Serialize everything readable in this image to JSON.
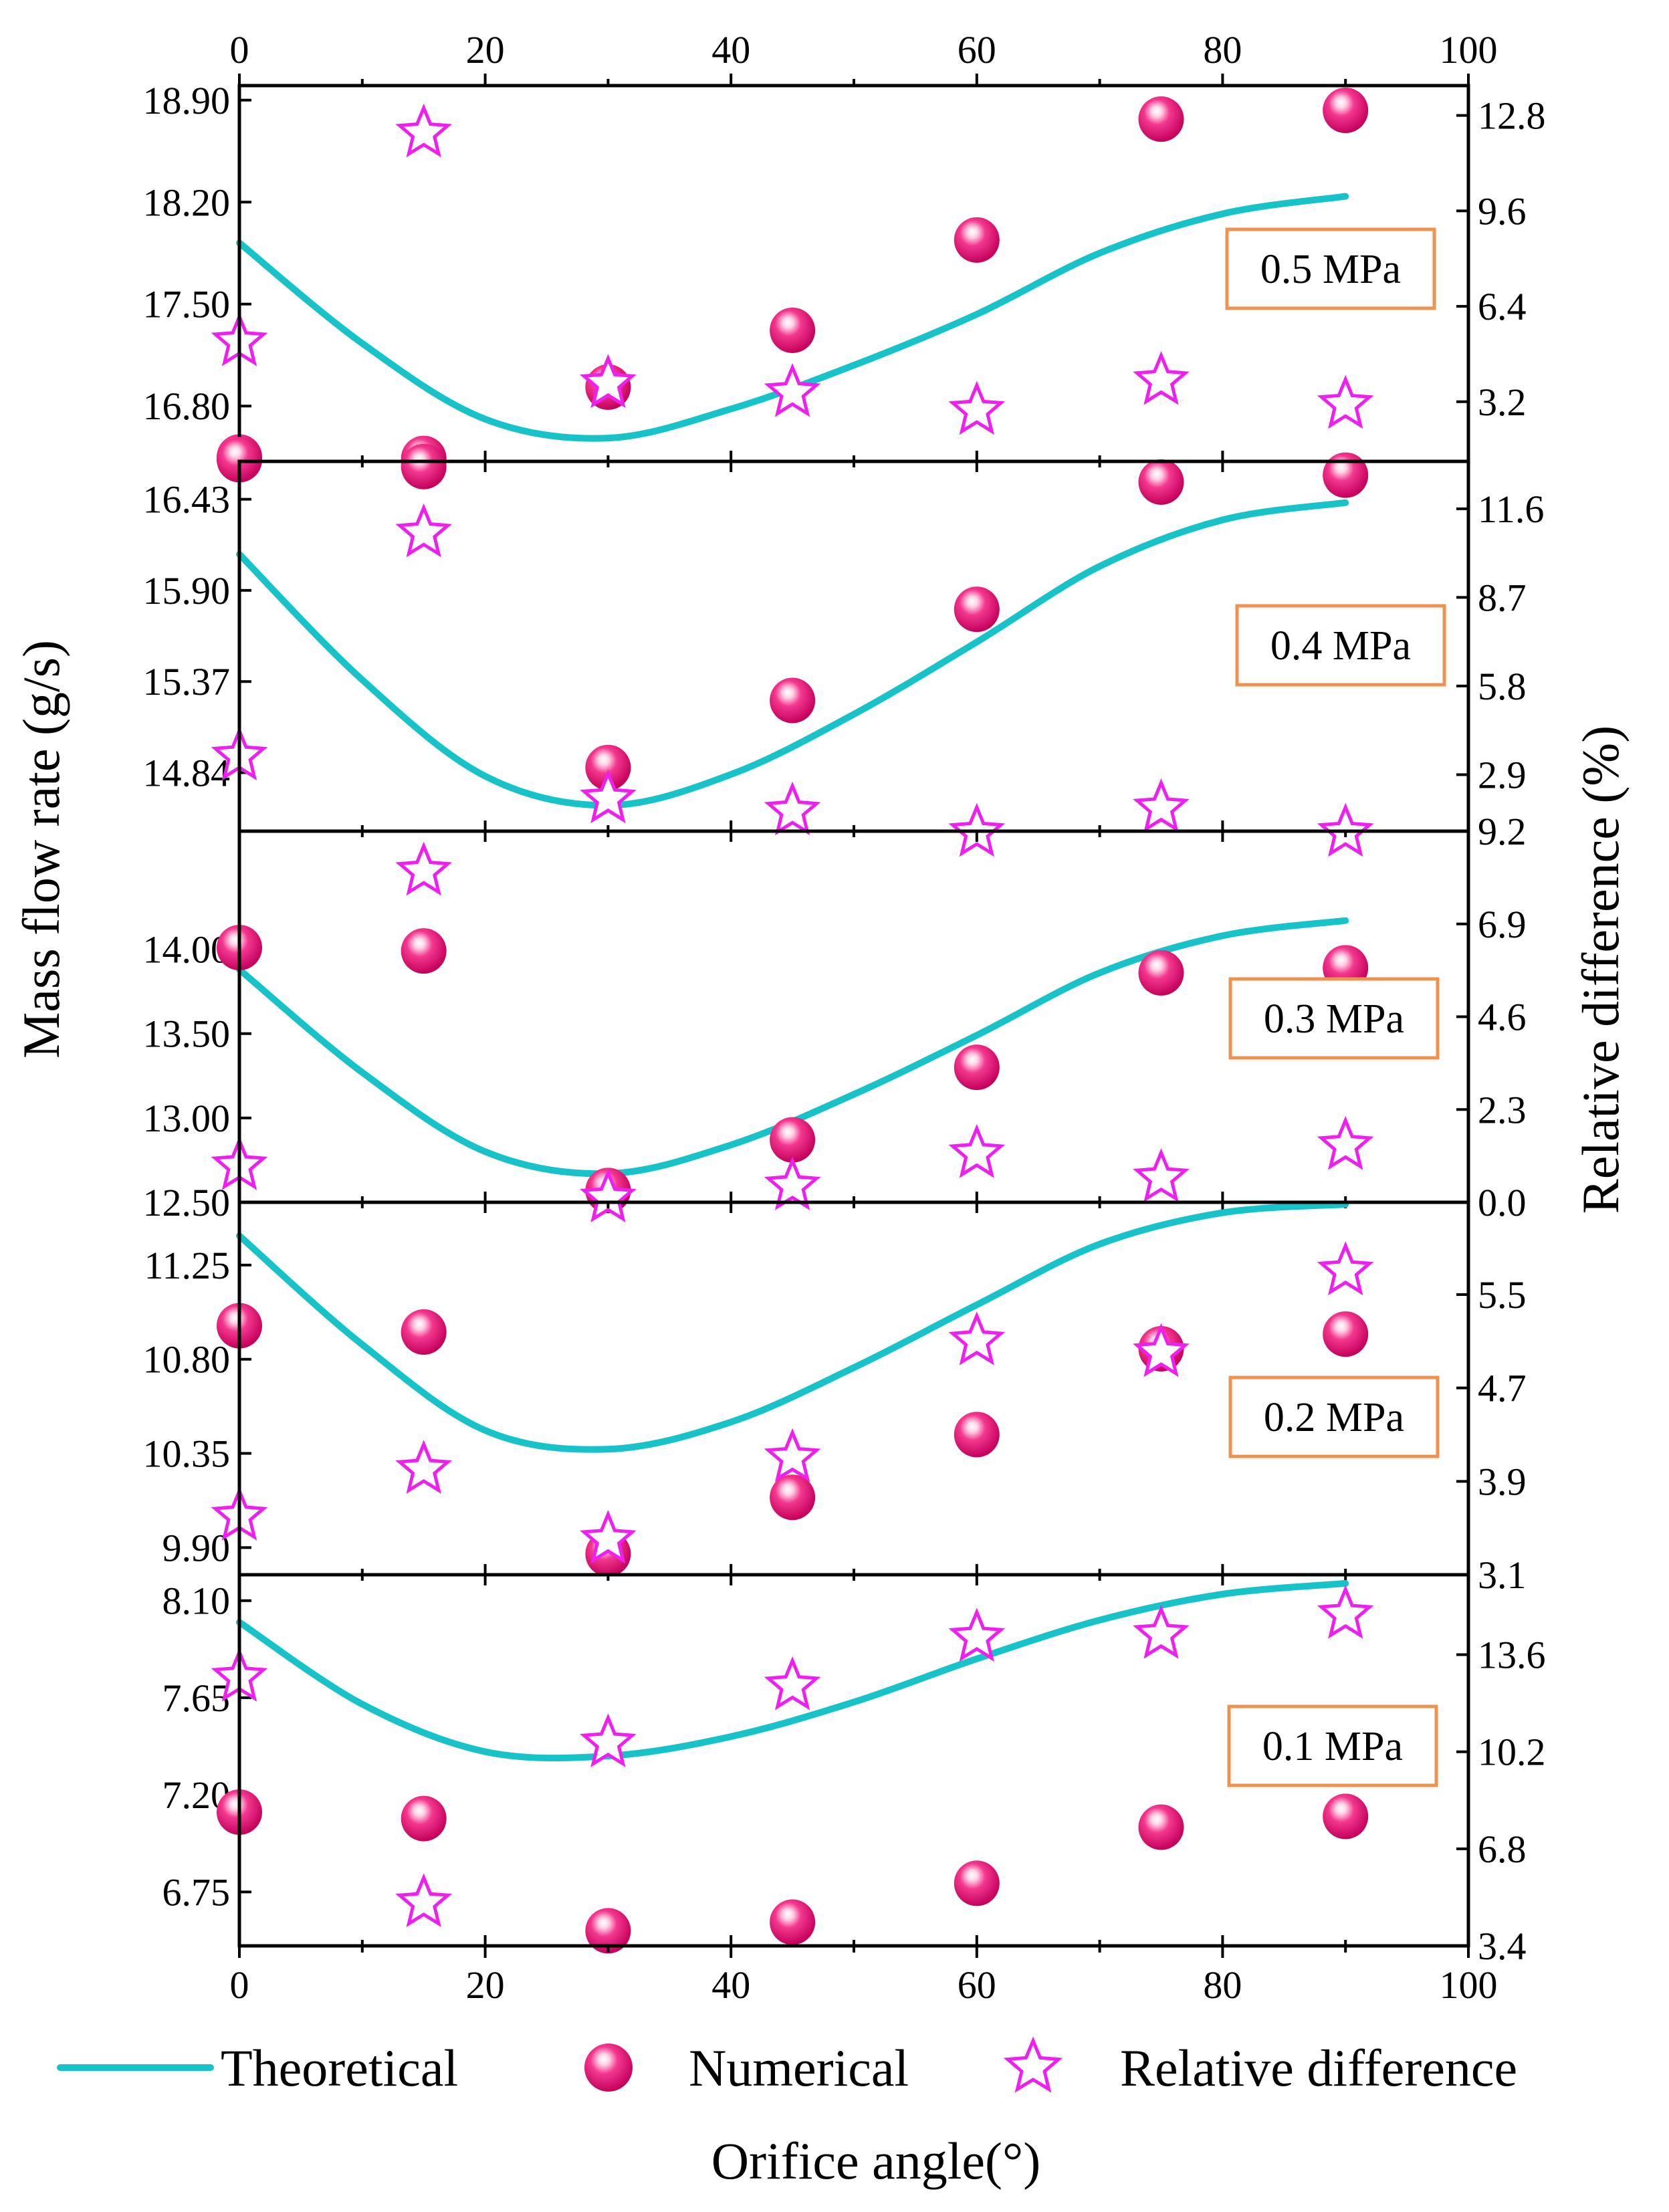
{
  "chart_data": {
    "type": "scatter",
    "xlabel": "Orifice angle(°)",
    "ylabel": "Mass flow rate (g/s)",
    "y2label": "Relative difference (%)",
    "xlim": [
      0,
      100
    ],
    "xticks": [
      0,
      20,
      40,
      60,
      80,
      100
    ],
    "xtick_labels": [
      "0",
      "20",
      "40",
      "60",
      "80",
      "100"
    ],
    "legend": {
      "position": "bottom",
      "entries": [
        {
          "key": "theoretical",
          "label": "Theoretical"
        },
        {
          "key": "numerical",
          "label": "Numerical"
        },
        {
          "key": "relative",
          "label": "Relative difference"
        }
      ]
    },
    "colors": {
      "theoretical": "#17c3c9",
      "numerical": "#e8106e",
      "relative": "#ef1fef",
      "box": "#f0924f"
    },
    "panels": [
      {
        "label": "0.5 MPa",
        "ylim": [
          16.42,
          19.0
        ],
        "yticks": [
          16.8,
          17.5,
          18.2,
          18.9
        ],
        "ytick_labels": [
          "16.80",
          "17.50",
          "18.20",
          "18.90"
        ],
        "y2lim": [
          1.2,
          13.8
        ],
        "y2ticks": [
          3.2,
          6.4,
          9.6,
          12.8
        ],
        "y2tick_labels": [
          "3.2",
          "6.4",
          "9.6",
          "12.8"
        ],
        "numerical": {
          "x": [
            0,
            15,
            30,
            45,
            60,
            75,
            90
          ],
          "y": [
            16.45,
            16.44,
            16.93,
            17.32,
            17.94,
            18.77,
            18.83
          ]
        },
        "relative": {
          "x": [
            0,
            15,
            30,
            45,
            60,
            75,
            90
          ],
          "y": [
            5.2,
            12.2,
            3.8,
            3.5,
            2.9,
            3.9,
            3.1
          ]
        },
        "theoretical": {
          "x": [
            0,
            10,
            20,
            30,
            40,
            50,
            60,
            70,
            80,
            90
          ],
          "y": [
            17.92,
            17.23,
            16.71,
            16.58,
            16.78,
            17.08,
            17.43,
            17.85,
            18.12,
            18.24
          ]
        }
      },
      {
        "label": "0.4 MPa",
        "ylim": [
          14.5,
          16.65
        ],
        "yticks": [
          14.84,
          15.37,
          15.9,
          16.43
        ],
        "ytick_labels": [
          "14.84",
          "15.37",
          "15.90",
          "16.43"
        ],
        "y2lim": [
          1.05,
          13.15
        ],
        "y2ticks": [
          2.9,
          5.8,
          8.7,
          11.6
        ],
        "y2tick_labels": [
          "2.9",
          "5.8",
          "8.7",
          "11.6"
        ],
        "numerical": {
          "x": [
            0,
            15,
            30,
            45,
            60,
            75,
            90
          ],
          "y": [
            16.66,
            16.62,
            14.87,
            15.26,
            15.79,
            16.53,
            16.57
          ]
        },
        "relative": {
          "x": [
            0,
            15,
            30,
            45,
            60,
            75,
            90
          ],
          "y": [
            3.5,
            10.8,
            2.1,
            1.7,
            1.0,
            1.8,
            1.0
          ]
        },
        "theoretical": {
          "x": [
            0,
            10,
            20,
            30,
            40,
            50,
            60,
            70,
            80,
            90
          ],
          "y": [
            16.11,
            15.38,
            14.82,
            14.65,
            14.83,
            15.18,
            15.6,
            16.04,
            16.31,
            16.41
          ]
        }
      },
      {
        "label": "0.3 MPa",
        "ylim": [
          12.5,
          14.7
        ],
        "yticks": [
          12.5,
          13.0,
          13.5,
          14.0
        ],
        "ytick_labels": [
          "12.50",
          "13.00",
          "13.50",
          "14.00"
        ],
        "y2lim": [
          0.0,
          9.2
        ],
        "y2ticks": [
          0.0,
          2.3,
          4.6,
          6.9,
          9.2
        ],
        "y2tick_labels": [
          "0.0",
          "2.3",
          "4.6",
          "6.9",
          "9.2"
        ],
        "numerical": {
          "x": [
            0,
            15,
            30,
            45,
            60,
            75,
            90
          ],
          "y": [
            14.01,
            13.99,
            12.57,
            12.87,
            13.3,
            13.86,
            13.89
          ]
        },
        "relative": {
          "x": [
            0,
            15,
            30,
            45,
            60,
            75,
            90
          ],
          "y": [
            0.9,
            8.2,
            0.1,
            0.4,
            1.2,
            0.6,
            1.4
          ]
        },
        "theoretical": {
          "x": [
            0,
            10,
            20,
            30,
            40,
            50,
            60,
            70,
            80,
            90
          ],
          "y": [
            13.88,
            13.27,
            12.8,
            12.67,
            12.84,
            13.14,
            13.49,
            13.86,
            14.08,
            14.17
          ]
        }
      },
      {
        "label": "0.2 MPa",
        "ylim": [
          9.77,
          11.55
        ],
        "yticks": [
          9.9,
          10.35,
          10.8,
          11.25
        ],
        "ytick_labels": [
          "9.90",
          "10.35",
          "10.80",
          "11.25"
        ],
        "y2lim": [
          3.1,
          6.29
        ],
        "y2ticks": [
          3.1,
          3.9,
          4.7,
          5.5
        ],
        "y2tick_labels": [
          "3.1",
          "3.9",
          "4.7",
          "5.5"
        ],
        "numerical": {
          "x": [
            0,
            15,
            30,
            45,
            60,
            75,
            90
          ],
          "y": [
            10.96,
            10.93,
            9.87,
            10.14,
            10.44,
            10.85,
            10.92
          ]
        },
        "relative": {
          "x": [
            0,
            15,
            30,
            45,
            60,
            75,
            90
          ],
          "y": [
            3.6,
            4.0,
            3.4,
            4.1,
            5.1,
            5.0,
            5.7
          ]
        },
        "theoretical": {
          "x": [
            0,
            10,
            20,
            30,
            40,
            50,
            60,
            70,
            80,
            90
          ],
          "y": [
            11.39,
            10.87,
            10.46,
            10.37,
            10.5,
            10.76,
            11.06,
            11.35,
            11.5,
            11.54
          ]
        }
      },
      {
        "label": "0.1 MPa",
        "ylim": [
          6.5,
          8.22
        ],
        "yticks": [
          6.75,
          7.2,
          7.65,
          8.1
        ],
        "ytick_labels": [
          "6.75",
          "7.20",
          "7.65",
          "8.10"
        ],
        "y2lim": [
          3.4,
          16.4
        ],
        "y2ticks": [
          3.4,
          6.8,
          10.2,
          13.6
        ],
        "y2tick_labels": [
          "3.4",
          "6.8",
          "10.2",
          "13.6"
        ],
        "numerical": {
          "x": [
            0,
            15,
            30,
            45,
            60,
            75,
            90
          ],
          "y": [
            7.12,
            7.09,
            6.57,
            6.61,
            6.79,
            7.05,
            7.1
          ]
        },
        "relative": {
          "x": [
            0,
            15,
            30,
            45,
            60,
            75,
            90
          ],
          "y": [
            12.8,
            4.9,
            10.5,
            12.5,
            14.2,
            14.3,
            15.0
          ]
        },
        "theoretical": {
          "x": [
            0,
            10,
            20,
            30,
            40,
            50,
            60,
            70,
            80,
            90
          ],
          "y": [
            8.0,
            7.62,
            7.4,
            7.38,
            7.47,
            7.63,
            7.83,
            8.01,
            8.13,
            8.18
          ]
        }
      }
    ]
  }
}
